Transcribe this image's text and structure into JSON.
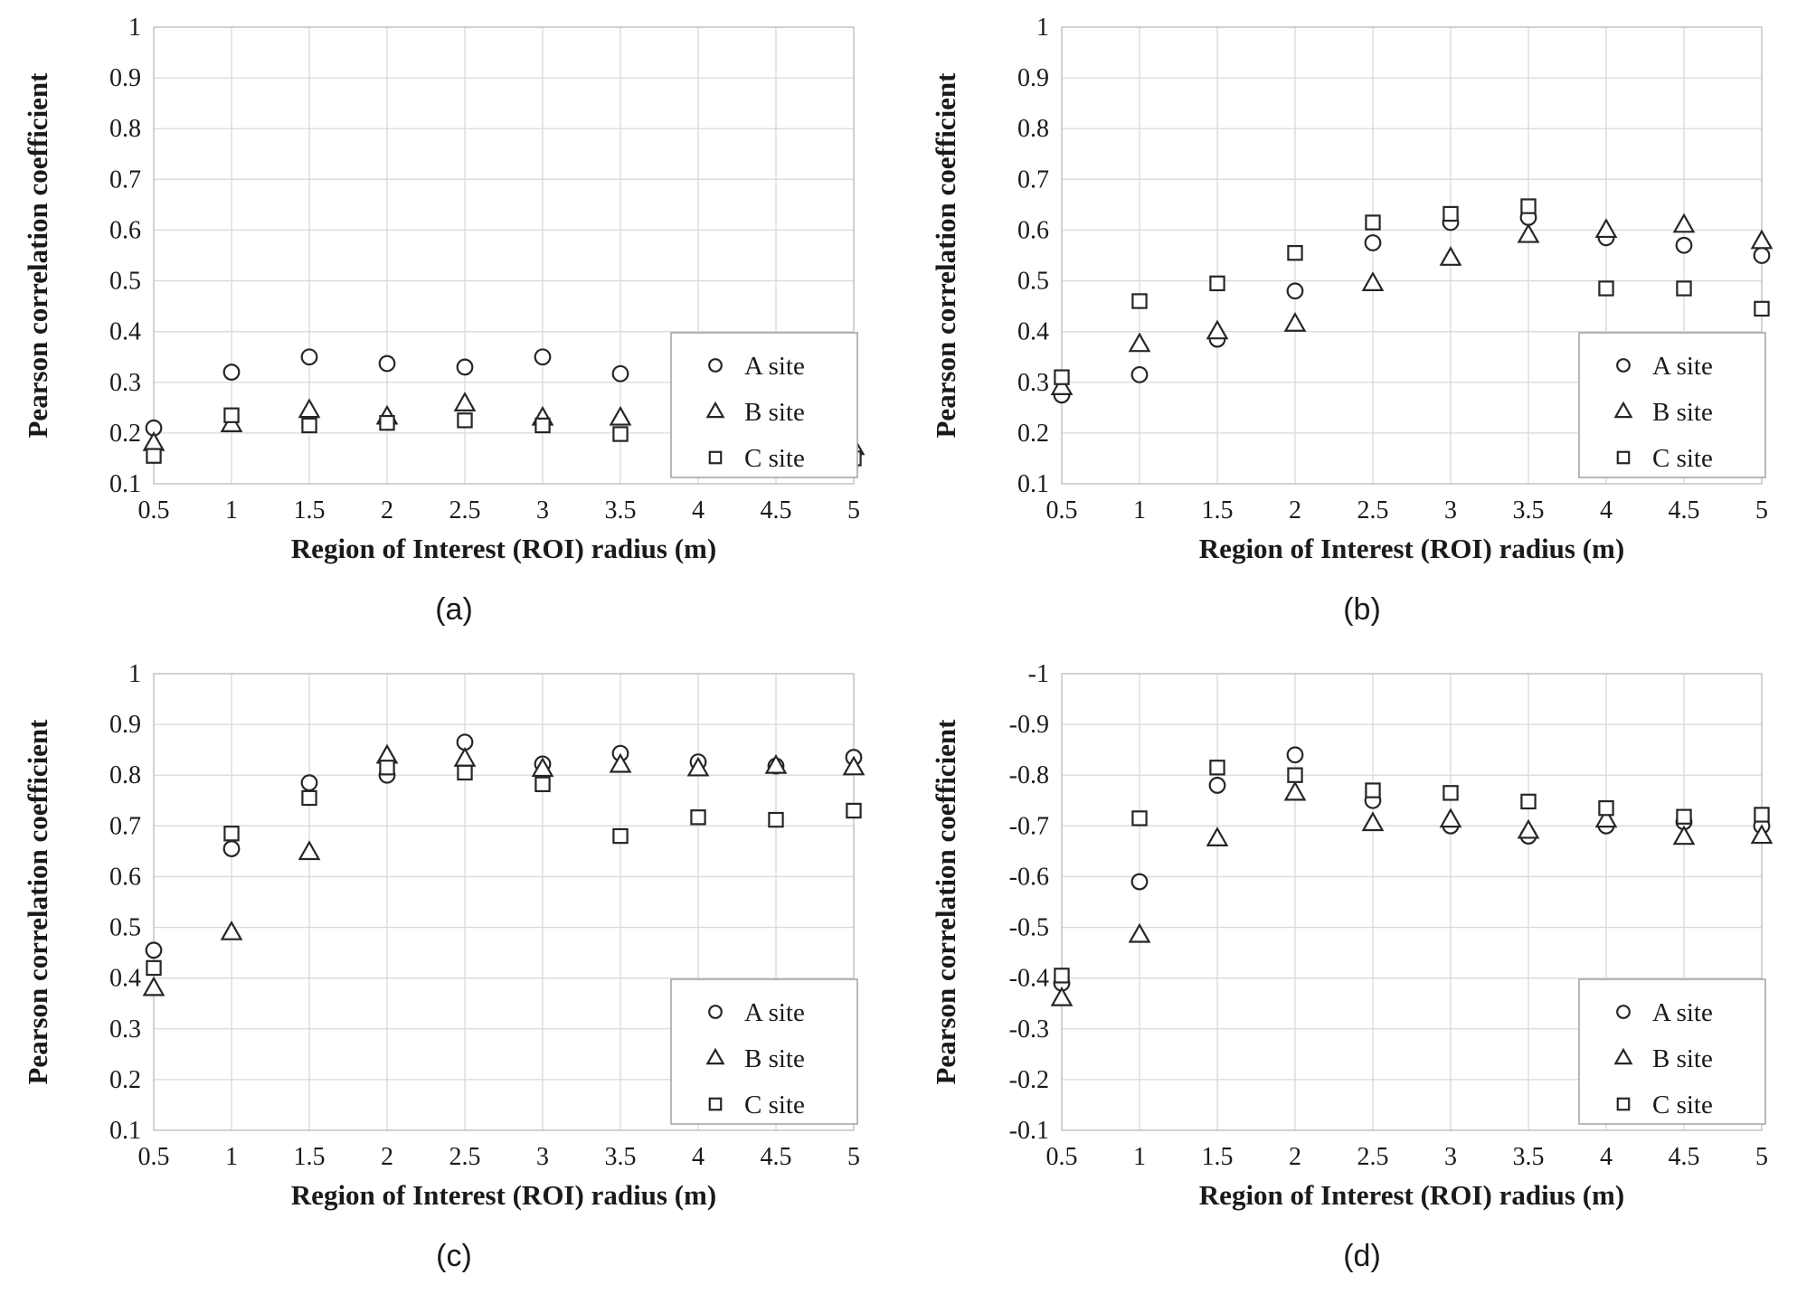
{
  "figure": {
    "background": "#ffffff"
  },
  "shared": {
    "xlabel": "Region of Interest (ROI) radius (m)",
    "ylabel": "Pearson correlation coefficient",
    "x_ticks": [
      "0.5",
      "1",
      "1.5",
      "2",
      "2.5",
      "3",
      "3.5",
      "4",
      "4.5",
      "5"
    ],
    "legend": [
      {
        "marker": "circle",
        "label": "A site"
      },
      {
        "marker": "triangle",
        "label": "B site"
      },
      {
        "marker": "square",
        "label": "C site"
      }
    ],
    "legend_position": "inside-bottom-right",
    "grid": true,
    "colors": {
      "gridline": "#d9d9d9",
      "plot_border": "#bfbfbf",
      "marker_stroke": "#262626",
      "marker_fill": "#ffffff",
      "legend_border": "#a6a6a6",
      "text": "#1a1a1a"
    }
  },
  "chart_data": [
    {
      "id": "a",
      "type": "scatter",
      "caption": "(a)",
      "xlabel": "Region of Interest (ROI) radius (m)",
      "ylabel": "Pearson correlation coefficient",
      "xlim": [
        0.5,
        5
      ],
      "ylim": [
        0.1,
        1
      ],
      "y_ticks": [
        "1",
        "0.9",
        "0.8",
        "0.7",
        "0.6",
        "0.5",
        "0.4",
        "0.3",
        "0.2",
        "0.1"
      ],
      "x": [
        0.5,
        1,
        1.5,
        2,
        2.5,
        3,
        3.5,
        4,
        4.5,
        5
      ],
      "series": [
        {
          "name": "A site",
          "marker": "circle",
          "values": [
            0.21,
            0.32,
            0.35,
            0.337,
            0.33,
            0.35,
            0.317,
            null,
            null,
            null
          ]
        },
        {
          "name": "B site",
          "marker": "triangle",
          "values": [
            0.18,
            0.217,
            0.245,
            0.232,
            0.258,
            0.23,
            0.23,
            null,
            null,
            0.172
          ]
        },
        {
          "name": "C site",
          "marker": "square",
          "values": [
            0.155,
            0.235,
            0.215,
            0.22,
            0.225,
            0.215,
            0.198,
            null,
            null,
            0.15
          ]
        }
      ]
    },
    {
      "id": "b",
      "type": "scatter",
      "caption": "(b)",
      "xlabel": "Region of Interest (ROI) radius (m)",
      "ylabel": "Pearson correlation coefficient",
      "xlim": [
        0.5,
        5
      ],
      "ylim": [
        0.1,
        1
      ],
      "y_ticks": [
        "1",
        "0.9",
        "0.8",
        "0.7",
        "0.6",
        "0.5",
        "0.4",
        "0.3",
        "0.2",
        "0.1"
      ],
      "x": [
        0.5,
        1,
        1.5,
        2,
        2.5,
        3,
        3.5,
        4,
        4.5,
        5
      ],
      "series": [
        {
          "name": "A site",
          "marker": "circle",
          "values": [
            0.275,
            0.315,
            0.385,
            0.48,
            0.575,
            0.615,
            0.625,
            0.585,
            0.57,
            0.55
          ]
        },
        {
          "name": "B site",
          "marker": "triangle",
          "values": [
            0.29,
            0.375,
            0.4,
            0.415,
            0.495,
            0.545,
            0.59,
            0.6,
            0.61,
            0.578
          ]
        },
        {
          "name": "C site",
          "marker": "square",
          "values": [
            0.31,
            0.46,
            0.495,
            0.555,
            0.615,
            0.632,
            0.647,
            0.485,
            0.485,
            0.445
          ]
        }
      ]
    },
    {
      "id": "c",
      "type": "scatter",
      "caption": "(c)",
      "xlabel": "Region of Interest (ROI) radius (m)",
      "ylabel": "Pearson correlation coefficient",
      "xlim": [
        0.5,
        5
      ],
      "ylim": [
        0.1,
        1
      ],
      "y_ticks": [
        "1",
        "0.9",
        "0.8",
        "0.7",
        "0.6",
        "0.5",
        "0.4",
        "0.3",
        "0.2",
        "0.1"
      ],
      "x": [
        0.5,
        1,
        1.5,
        2,
        2.5,
        3,
        3.5,
        4,
        4.5,
        5
      ],
      "series": [
        {
          "name": "A site",
          "marker": "circle",
          "values": [
            0.455,
            0.655,
            0.785,
            0.8,
            0.865,
            0.822,
            0.843,
            0.826,
            0.818,
            0.835
          ]
        },
        {
          "name": "B site",
          "marker": "triangle",
          "values": [
            0.38,
            0.49,
            0.648,
            0.838,
            0.832,
            0.812,
            0.82,
            0.813,
            0.818,
            0.815
          ]
        },
        {
          "name": "C site",
          "marker": "square",
          "values": [
            0.42,
            0.685,
            0.755,
            0.815,
            0.805,
            0.782,
            0.68,
            0.717,
            0.712,
            0.73
          ]
        }
      ]
    },
    {
      "id": "d",
      "type": "scatter",
      "caption": "(d)",
      "xlabel": "Region of Interest (ROI) radius (m)",
      "ylabel": "Pearson correlation coefficient",
      "xlim": [
        0.5,
        5
      ],
      "ylim": [
        -0.1,
        -1
      ],
      "y_ticks": [
        "-1",
        "-0.9",
        "-0.8",
        "-0.7",
        "-0.6",
        "-0.5",
        "-0.4",
        "-0.3",
        "-0.2",
        "-0.1"
      ],
      "x": [
        0.5,
        1,
        1.5,
        2,
        2.5,
        3,
        3.5,
        4,
        4.5,
        5
      ],
      "series": [
        {
          "name": "A site",
          "marker": "circle",
          "values": [
            -0.39,
            -0.59,
            -0.78,
            -0.84,
            -0.75,
            -0.7,
            -0.68,
            -0.7,
            -0.708,
            -0.7
          ]
        },
        {
          "name": "B site",
          "marker": "triangle",
          "values": [
            -0.36,
            -0.485,
            -0.675,
            -0.765,
            -0.705,
            -0.712,
            -0.69,
            -0.712,
            -0.678,
            -0.68
          ]
        },
        {
          "name": "C site",
          "marker": "square",
          "values": [
            -0.405,
            -0.715,
            -0.815,
            -0.8,
            -0.77,
            -0.765,
            -0.748,
            -0.735,
            -0.718,
            -0.722
          ]
        }
      ]
    }
  ]
}
